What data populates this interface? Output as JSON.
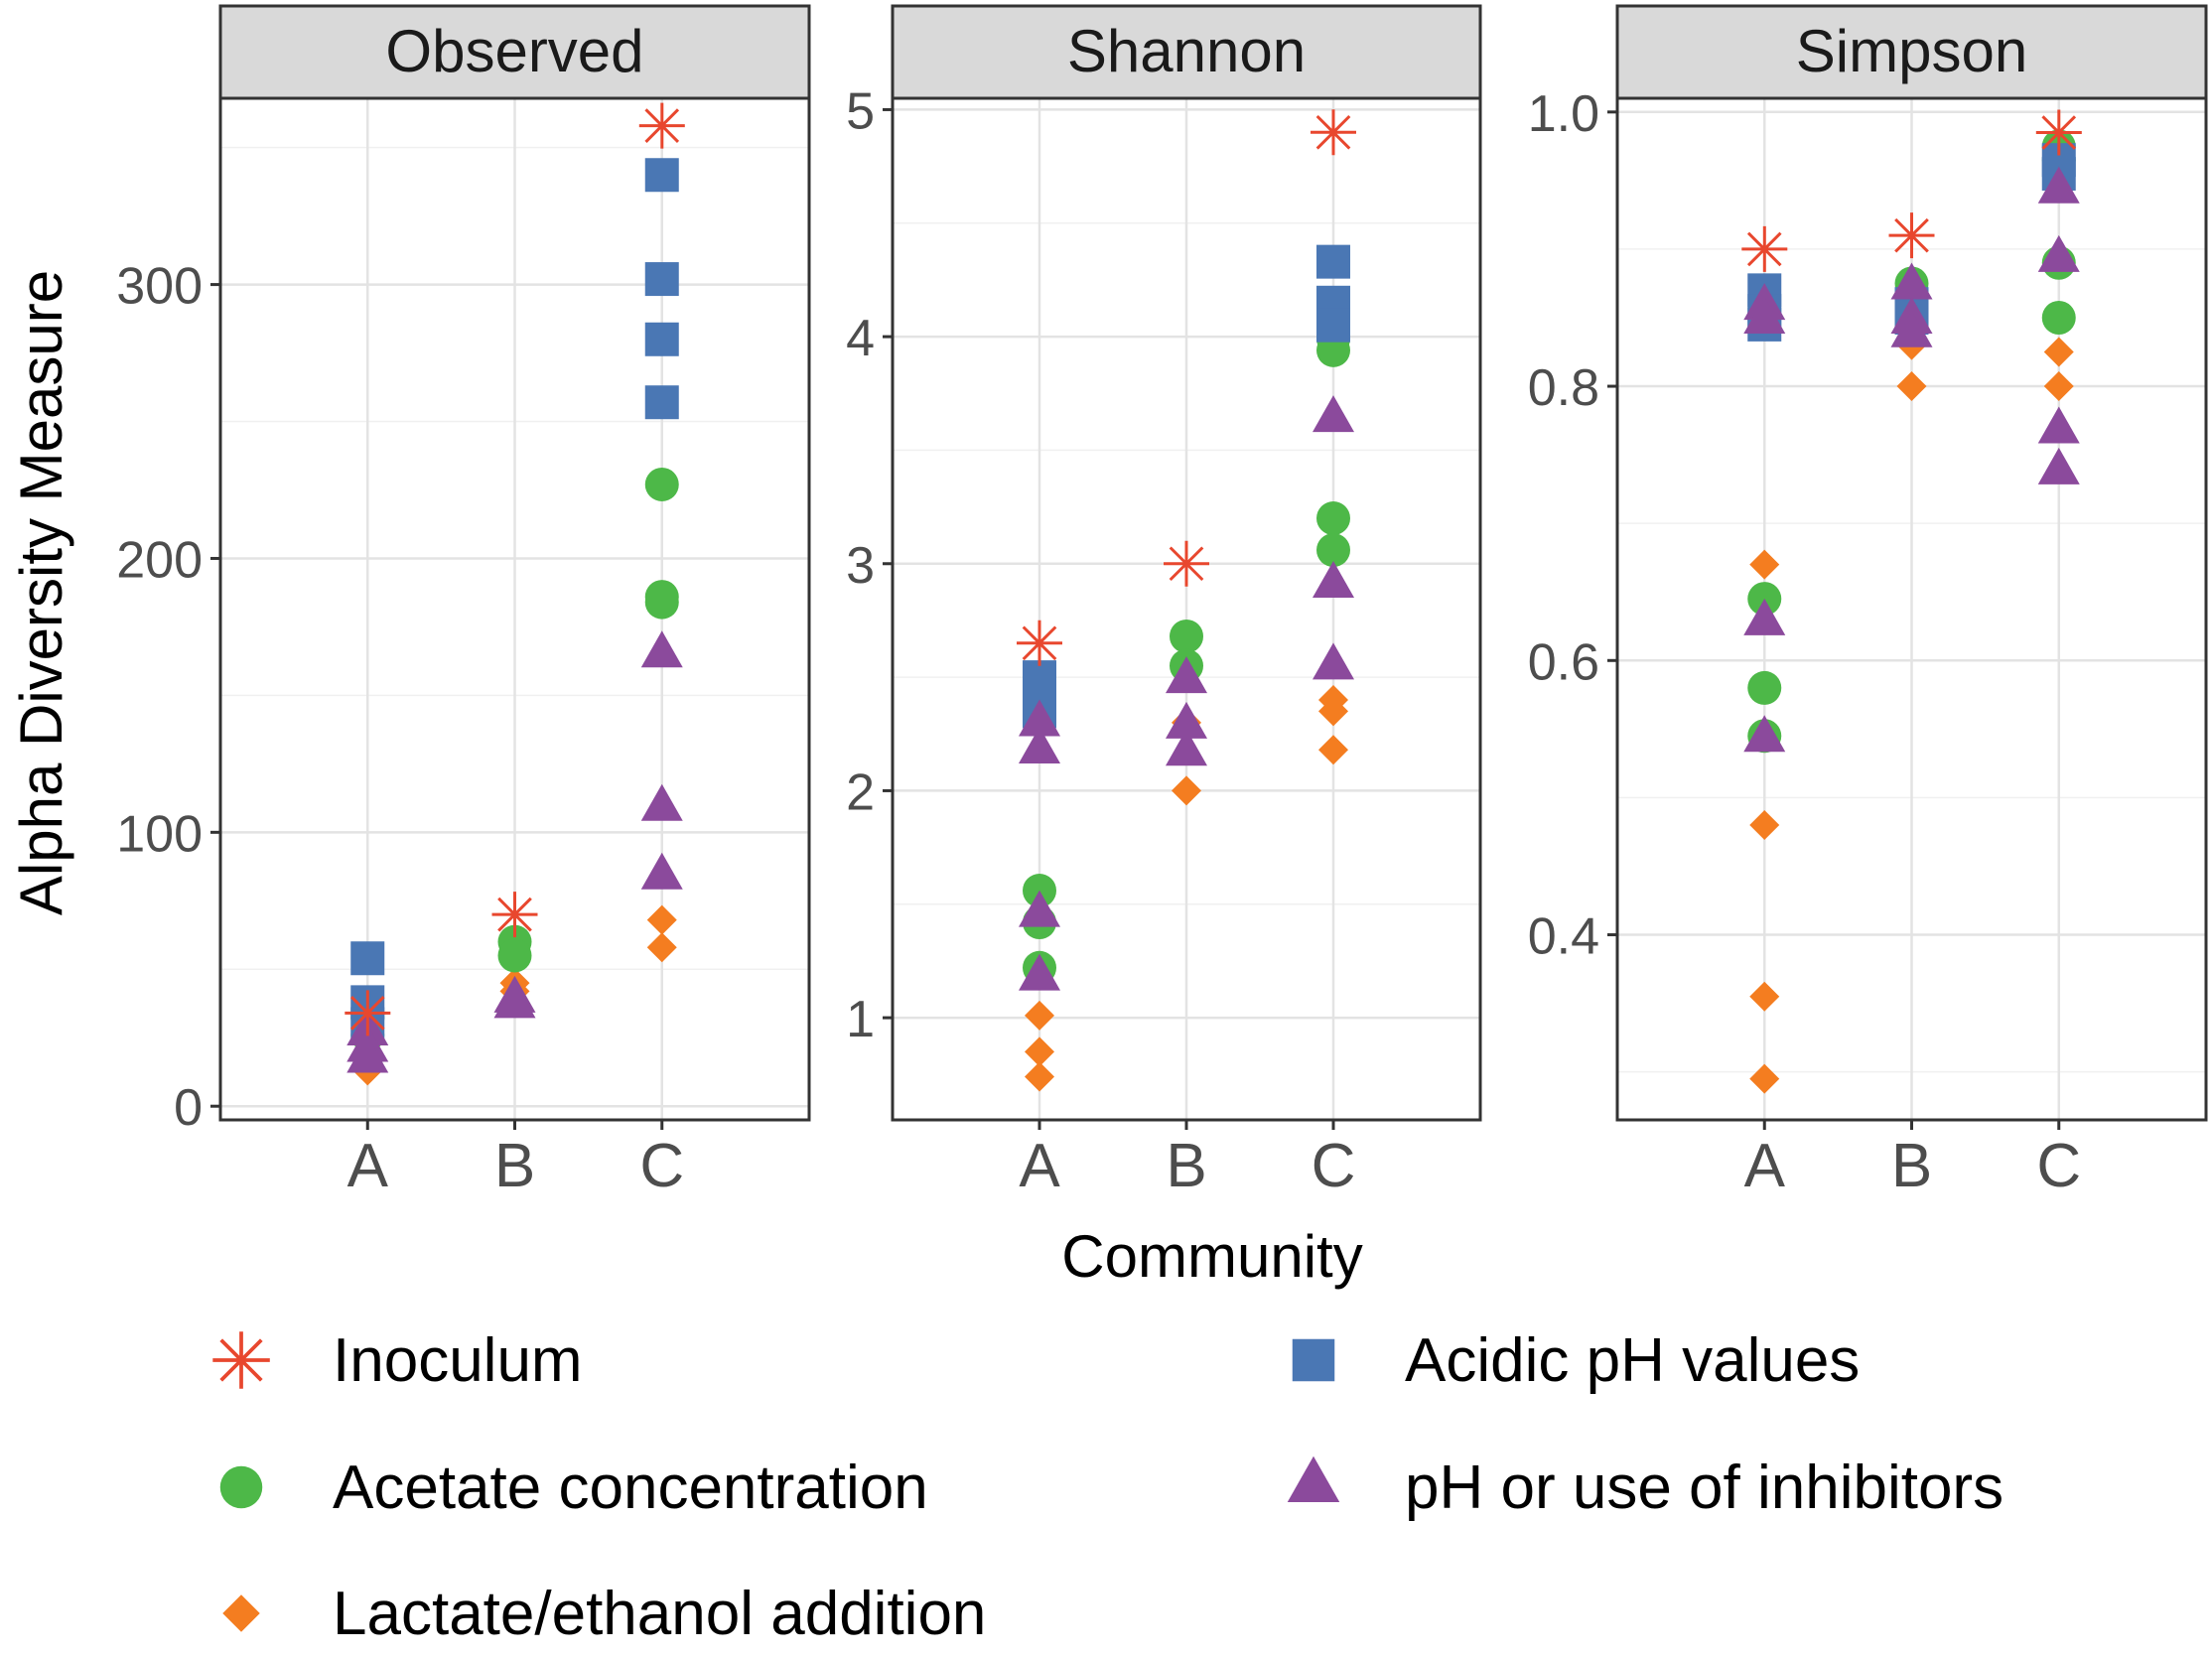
{
  "chart_data": {
    "type": "scatter",
    "ylabel": "Alpha Diversity Measure",
    "xlabel": "Community",
    "categories": [
      "A",
      "B",
      "C"
    ],
    "legend_position": "bottom",
    "series": [
      {
        "key": "inoculum",
        "name": "Inoculum",
        "shape": "asterisk",
        "color": "#E8472E"
      },
      {
        "key": "acidic",
        "name": "Acidic pH values",
        "shape": "square",
        "color": "#4A77B4"
      },
      {
        "key": "acetate",
        "name": "Acetate concentration",
        "shape": "circle",
        "color": "#4DB848"
      },
      {
        "key": "inhib",
        "name": "pH or use of inhibitors",
        "shape": "triangle",
        "color": "#8B4A9C"
      },
      {
        "key": "lactate",
        "name": "Lactate/ethanol addition",
        "shape": "diamond",
        "color": "#F47D20"
      }
    ],
    "facets": [
      {
        "title": "Observed",
        "ylim": [
          -5,
          368
        ],
        "yticks": [
          0,
          100,
          200,
          300
        ],
        "ytick_labels": [
          "0",
          "100",
          "200",
          "300"
        ],
        "points": {
          "inoculum": {
            "A": [
              34
            ],
            "B": [
              70
            ],
            "C": [
              358
            ]
          },
          "acidic": {
            "A": [
              54,
              38,
              30
            ],
            "B": [],
            "C": [
              340,
              302,
              280,
              257
            ]
          },
          "acetate": {
            "A": [
              32,
              26
            ],
            "B": [
              60,
              55
            ],
            "C": [
              227,
              186,
              184
            ]
          },
          "inhib": {
            "A": [
              28,
              22,
              18
            ],
            "B": [
              40,
              38
            ],
            "C": [
              166,
              110,
              85
            ]
          },
          "lactate": {
            "A": [
              20,
              16,
              13
            ],
            "B": [
              45,
              42
            ],
            "C": [
              68,
              58
            ]
          }
        }
      },
      {
        "title": "Shannon",
        "ylim": [
          0.55,
          5.05
        ],
        "yticks": [
          1,
          2,
          3,
          4,
          5
        ],
        "ytick_labels": [
          "1",
          "2",
          "3",
          "4",
          "5"
        ],
        "points": {
          "inoculum": {
            "A": [
              2.65
            ],
            "B": [
              3.0
            ],
            "C": [
              4.9
            ]
          },
          "acidic": {
            "A": [
              2.5,
              2.4,
              2.35
            ],
            "B": [],
            "C": [
              4.33,
              4.15,
              4.05
            ]
          },
          "acetate": {
            "A": [
              1.56,
              1.42,
              1.22
            ],
            "B": [
              2.68,
              2.55
            ],
            "C": [
              3.99,
              3.94,
              3.2,
              3.06
            ]
          },
          "inhib": {
            "A": [
              2.31,
              2.19,
              1.47,
              1.19
            ],
            "B": [
              2.5,
              2.3,
              2.18
            ],
            "C": [
              3.65,
              2.92,
              2.56
            ]
          },
          "lactate": {
            "A": [
              1.53,
              1.01,
              0.85,
              0.74
            ],
            "B": [
              2.3,
              2.0
            ],
            "C": [
              2.4,
              2.35,
              2.18
            ]
          }
        }
      },
      {
        "title": "Simpson",
        "ylim": [
          0.265,
          1.01
        ],
        "yticks": [
          0.4,
          0.6,
          0.8,
          1.0
        ],
        "ytick_labels": [
          "0.4",
          "0.6",
          "0.8",
          "1.0"
        ],
        "points": {
          "inoculum": {
            "A": [
              0.9
            ],
            "B": [
              0.91
            ],
            "C": [
              0.985
            ]
          },
          "acidic": {
            "A": [
              0.87,
              0.855,
              0.845
            ],
            "B": [
              0.86,
              0.85
            ],
            "C": [
              0.965,
              0.955
            ]
          },
          "acetate": {
            "A": [
              0.645,
              0.58,
              0.545
            ],
            "B": [
              0.875,
              0.865
            ],
            "C": [
              0.975,
              0.965,
              0.89,
              0.85
            ]
          },
          "inhib": {
            "A": [
              0.86,
              0.85,
              0.63,
              0.545
            ],
            "B": [
              0.875,
              0.85,
              0.84
            ],
            "C": [
              0.945,
              0.895,
              0.77,
              0.74
            ]
          },
          "lactate": {
            "A": [
              0.67,
              0.48,
              0.355,
              0.295
            ],
            "B": [
              0.83,
              0.8
            ],
            "C": [
              0.825,
              0.8
            ]
          }
        }
      }
    ]
  }
}
